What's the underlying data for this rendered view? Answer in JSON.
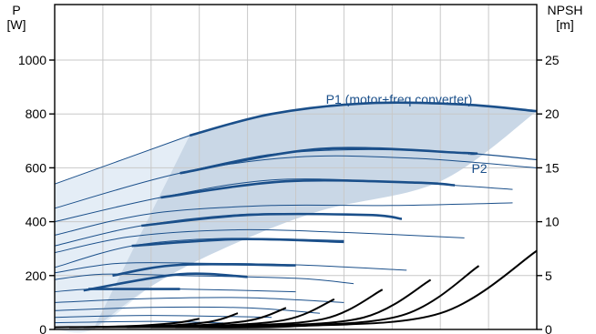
{
  "chart_data": {
    "type": "line",
    "title": "",
    "y_left": {
      "label_line1": "P",
      "label_line2": "[W]",
      "range": [
        0,
        1000
      ],
      "ticks": [
        "0",
        "200",
        "400",
        "600",
        "800",
        "1000"
      ]
    },
    "y_right": {
      "label_line1": "NPSH",
      "label_line2": "[m]",
      "range": [
        0,
        25
      ],
      "ticks": [
        "0",
        "5",
        "10",
        "15",
        "20",
        "25"
      ]
    },
    "x": {
      "range": [
        0,
        10
      ],
      "ticks_labeled": false,
      "grid_lines": 10
    },
    "grid": true,
    "colors": {
      "p1": "#1a4f8a",
      "p2": "#1a4f8a",
      "npsh": "#000000",
      "operating_band": "#c9d7e6",
      "extended_band": "#e4edf6",
      "grid": "#c8c8c8"
    },
    "series": [
      {
        "name": "P1 (motor+freq.converter)",
        "kind": "power-envelope",
        "points": [
          [
            2.8,
            720
          ],
          [
            4.5,
            800
          ],
          [
            6.5,
            840
          ],
          [
            8.5,
            835
          ],
          [
            10,
            810
          ]
        ]
      },
      {
        "name": "P2",
        "kind": "power-envelope",
        "points": [
          [
            2.6,
            580
          ],
          [
            4.5,
            650
          ],
          [
            6.5,
            668
          ],
          [
            8.5,
            655
          ],
          [
            10,
            630
          ]
        ]
      }
    ],
    "power_curves": [
      {
        "points": [
          [
            0,
            540
          ],
          [
            2.8,
            720
          ]
        ]
      },
      {
        "points": [
          [
            0,
            450
          ],
          [
            2.6,
            580
          ],
          [
            5,
            640
          ],
          [
            7.5,
            635
          ],
          [
            10,
            600
          ]
        ]
      },
      {
        "points": [
          [
            0,
            400
          ],
          [
            2.2,
            490
          ],
          [
            4.5,
            555
          ],
          [
            7,
            548
          ],
          [
            9.5,
            520
          ]
        ]
      },
      {
        "points": [
          [
            0,
            350
          ],
          [
            2,
            430
          ],
          [
            4.5,
            460
          ],
          [
            7,
            460
          ],
          [
            9.5,
            470
          ]
        ]
      },
      {
        "points": [
          [
            0,
            310
          ],
          [
            1.8,
            385
          ],
          [
            4,
            428
          ],
          [
            6.5,
            425
          ],
          [
            7.2,
            410
          ]
        ]
      },
      {
        "points": [
          [
            0,
            285
          ],
          [
            1.6,
            345
          ],
          [
            3.8,
            370
          ],
          [
            6,
            360
          ],
          [
            8.5,
            340
          ]
        ]
      },
      {
        "points": [
          [
            0,
            230
          ],
          [
            1.6,
            310
          ],
          [
            3.5,
            338
          ],
          [
            6,
            330
          ]
        ]
      },
      {
        "points": [
          [
            0,
            210
          ],
          [
            1.3,
            245
          ],
          [
            3,
            246
          ],
          [
            5,
            240
          ],
          [
            7.3,
            220
          ]
        ]
      },
      {
        "points": [
          [
            0,
            185
          ],
          [
            1,
            205
          ],
          [
            2.6,
            200
          ],
          [
            5,
            190
          ],
          [
            6.2,
            170
          ]
        ]
      },
      {
        "points": [
          [
            0,
            140
          ],
          [
            0.8,
            150
          ],
          [
            2.6,
            150
          ],
          [
            5,
            140
          ]
        ]
      },
      {
        "points": [
          [
            0,
            100
          ],
          [
            2,
            115
          ],
          [
            4,
            118
          ],
          [
            6,
            100
          ]
        ]
      },
      {
        "points": [
          [
            0,
            70
          ],
          [
            2,
            82
          ],
          [
            4,
            80
          ],
          [
            5.5,
            60
          ]
        ]
      },
      {
        "points": [
          [
            0,
            45
          ],
          [
            2,
            52
          ],
          [
            4.5,
            45
          ]
        ]
      },
      {
        "points": [
          [
            0,
            25
          ],
          [
            2,
            30
          ],
          [
            3.5,
            24
          ]
        ]
      }
    ],
    "thick_curves": [
      {
        "points": [
          [
            2.6,
            580
          ],
          [
            5.5,
            670
          ],
          [
            8.5,
            655
          ],
          [
            8.6,
            652
          ]
        ]
      },
      {
        "points": [
          [
            2.2,
            490
          ],
          [
            4.8,
            550
          ],
          [
            7.5,
            545
          ],
          [
            8.3,
            535
          ]
        ]
      },
      {
        "points": [
          [
            1.8,
            385
          ],
          [
            4,
            425
          ],
          [
            6.5,
            425
          ],
          [
            7.2,
            410
          ]
        ]
      },
      {
        "points": [
          [
            1.6,
            310
          ],
          [
            3.8,
            335
          ],
          [
            6,
            325
          ]
        ]
      },
      {
        "points": [
          [
            1.2,
            200
          ],
          [
            2.6,
            240
          ],
          [
            5,
            238
          ]
        ]
      },
      {
        "points": [
          [
            0.6,
            145
          ],
          [
            2.6,
            205
          ],
          [
            4,
            195
          ]
        ]
      },
      {
        "points": [
          [
            0.7,
            150
          ],
          [
            2.6,
            150
          ]
        ]
      }
    ],
    "npsh_curves": [
      {
        "points": [
          [
            0,
            0.2
          ],
          [
            1.5,
            0.3
          ],
          [
            2.5,
            0.6
          ],
          [
            3,
            1.0
          ]
        ]
      },
      {
        "points": [
          [
            0.3,
            0.2
          ],
          [
            2,
            0.3
          ],
          [
            3.2,
            0.7
          ],
          [
            3.8,
            1.5
          ]
        ]
      },
      {
        "points": [
          [
            0.6,
            0.2
          ],
          [
            2.5,
            0.3
          ],
          [
            4,
            0.8
          ],
          [
            4.8,
            2.0
          ]
        ]
      },
      {
        "points": [
          [
            1.0,
            0.2
          ],
          [
            3,
            0.3
          ],
          [
            4.8,
            0.9
          ],
          [
            5.8,
            2.8
          ]
        ]
      },
      {
        "points": [
          [
            1.5,
            0.2
          ],
          [
            3.5,
            0.3
          ],
          [
            5.6,
            1.0
          ],
          [
            6.8,
            3.7
          ]
        ]
      },
      {
        "points": [
          [
            2.0,
            0.2
          ],
          [
            4,
            0.3
          ],
          [
            6.4,
            1.1
          ],
          [
            7.8,
            4.6
          ]
        ]
      },
      {
        "points": [
          [
            2.5,
            0.2
          ],
          [
            4.5,
            0.3
          ],
          [
            7.2,
            1.3
          ],
          [
            8.8,
            5.9
          ]
        ]
      },
      {
        "points": [
          [
            3.0,
            0.2
          ],
          [
            5,
            0.3
          ],
          [
            8.0,
            1.5
          ],
          [
            10,
            7.3
          ]
        ]
      }
    ],
    "operating_band": {
      "upper": [
        [
          2.8,
          720
        ],
        [
          4.5,
          800
        ],
        [
          6.5,
          840
        ],
        [
          8.5,
          835
        ],
        [
          10,
          810
        ]
      ],
      "lower_points": [
        [
          0.8,
          0
        ],
        [
          2,
          160
        ],
        [
          3.5,
          300
        ],
        [
          5.5,
          440
        ],
        [
          8,
          550
        ],
        [
          10,
          810
        ]
      ]
    },
    "extended_band": {
      "upper": [
        [
          0,
          540
        ],
        [
          2.8,
          720
        ]
      ],
      "lower_points": [
        [
          0,
          0
        ],
        [
          0.8,
          0
        ],
        [
          2,
          160
        ],
        [
          2.8,
          240
        ]
      ]
    }
  }
}
